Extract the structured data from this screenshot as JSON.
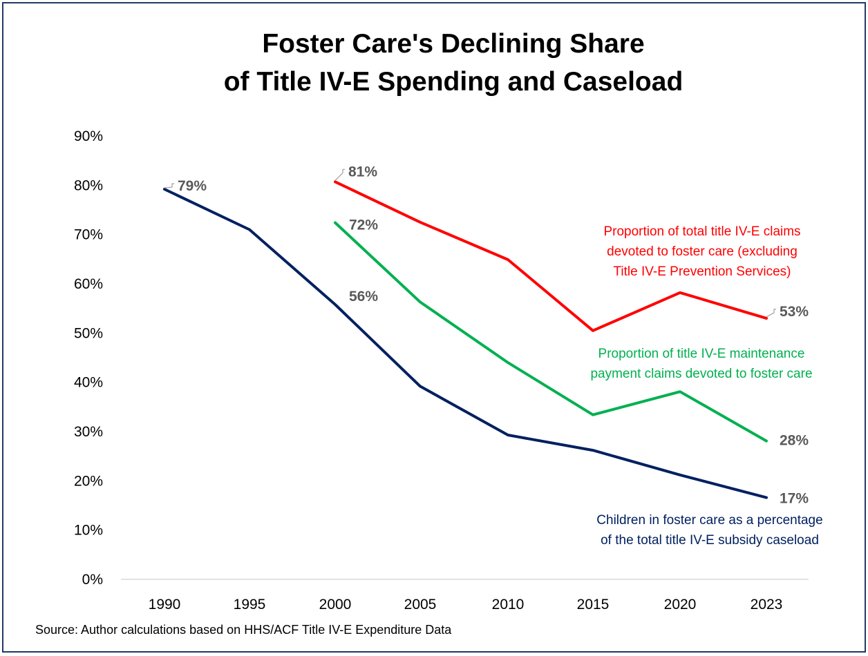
{
  "chart_data": {
    "type": "line",
    "title_lines": [
      "Foster Care's Declining Share",
      "of Title IV-E Spending and Caseload"
    ],
    "x": [
      "1990",
      "1995",
      "2000",
      "2005",
      "2010",
      "2015",
      "2020",
      "2023"
    ],
    "ylim": [
      0,
      90
    ],
    "y_ticks": [
      "0%",
      "10%",
      "20%",
      "30%",
      "40%",
      "50%",
      "60%",
      "70%",
      "80%",
      "90%"
    ],
    "grid": false,
    "series": [
      {
        "key": "claims",
        "color": "#ff0000",
        "values": [
          null,
          null,
          80.7,
          72.5,
          64.9,
          50.5,
          58.2,
          53.0
        ],
        "label_lines": [
          "Proportion of total title IV-E claims",
          "devoted to foster care (excluding",
          "Title IV-E Prevention Services)"
        ]
      },
      {
        "key": "maintenance",
        "color": "#00b050",
        "values": [
          null,
          null,
          72.4,
          56.3,
          44.0,
          33.4,
          38.1,
          28.1
        ],
        "label_lines": [
          "Proportion of title IV-E maintenance",
          "payment claims devoted to foster care"
        ]
      },
      {
        "key": "caseload",
        "color": "#002060",
        "values": [
          79.2,
          71.0,
          55.8,
          39.2,
          29.3,
          26.2,
          21.2,
          16.6
        ],
        "label_lines": [
          "Children in foster care as a percentage",
          "of the total title IV-E subsidy caseload"
        ]
      }
    ],
    "data_labels": [
      {
        "series": "caseload",
        "x": "1990",
        "text": "79%"
      },
      {
        "series": "claims",
        "x": "2000",
        "text": "81%"
      },
      {
        "series": "maintenance",
        "x": "2000",
        "text": "72%"
      },
      {
        "series": "caseload",
        "x": "2000",
        "text": "56%"
      },
      {
        "series": "claims",
        "x": "2023",
        "text": "53%"
      },
      {
        "series": "maintenance",
        "x": "2023",
        "text": "28%"
      },
      {
        "series": "caseload",
        "x": "2023",
        "text": "17%"
      }
    ],
    "source": "Source: Author calculations based on HHS/ACF Title IV-E Expenditure Data"
  }
}
